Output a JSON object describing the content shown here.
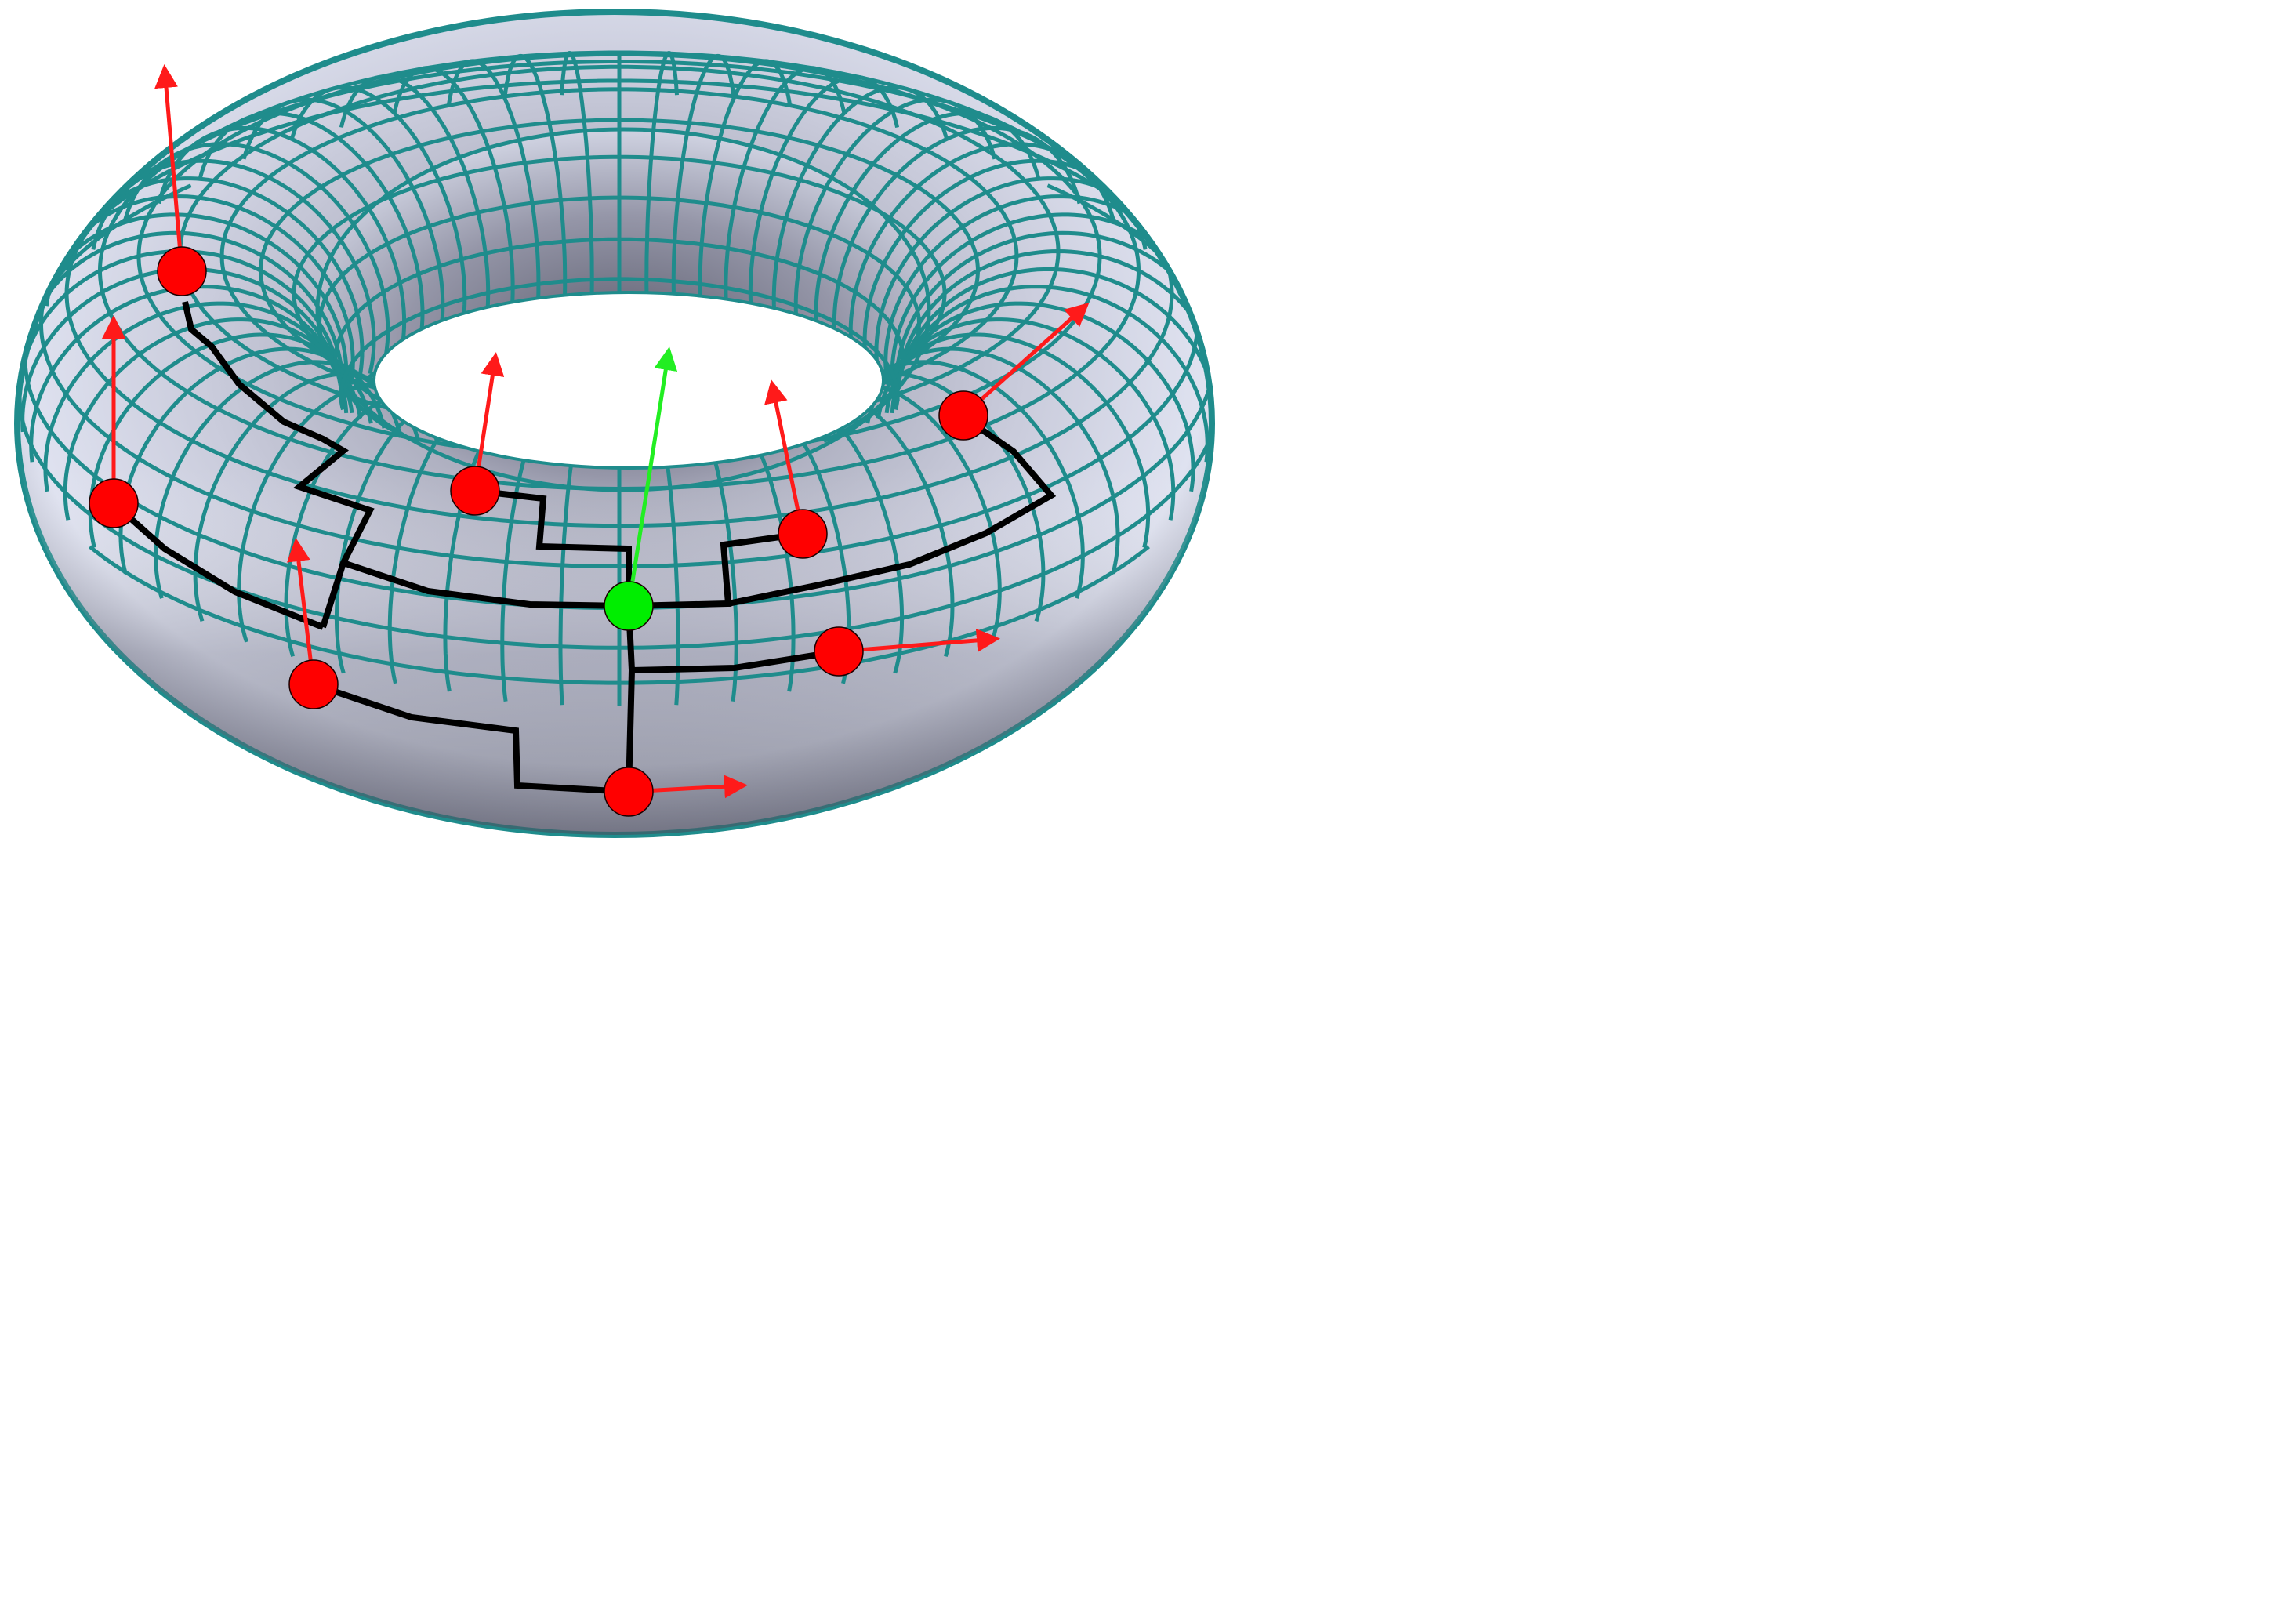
{
  "diagram": {
    "kind": "torus-mesh-spanning-tree",
    "colors": {
      "mesh_line": "#1f8c8c",
      "surface_light": "#e6e9f5",
      "surface_shadow": "#8b8c9c",
      "tree_edge": "#000000",
      "node": "#ff0000",
      "root_node": "#00ee00",
      "normal_arrow": "#ff1a1a",
      "root_arrow": "#22ee22"
    },
    "nodes": [
      {
        "id": "n1",
        "role": "leaf",
        "arrow": "normal-arrow-up"
      },
      {
        "id": "n2",
        "role": "leaf",
        "arrow": "normal-arrow-up"
      },
      {
        "id": "n3",
        "role": "leaf",
        "arrow": "normal-arrow-up"
      },
      {
        "id": "n4",
        "role": "leaf",
        "arrow": "normal-arrow-up"
      },
      {
        "id": "n5",
        "role": "leaf",
        "arrow": "normal-arrow-up"
      },
      {
        "id": "n6",
        "role": "leaf",
        "arrow": "normal-arrow-up-right"
      },
      {
        "id": "root",
        "role": "root",
        "arrow": "normal-arrow-up"
      },
      {
        "id": "n7",
        "role": "leaf",
        "arrow": "normal-arrow-right"
      },
      {
        "id": "n8",
        "role": "leaf",
        "arrow": "normal-arrow-up"
      },
      {
        "id": "n9",
        "role": "leaf",
        "arrow": "normal-arrow-right"
      }
    ]
  }
}
